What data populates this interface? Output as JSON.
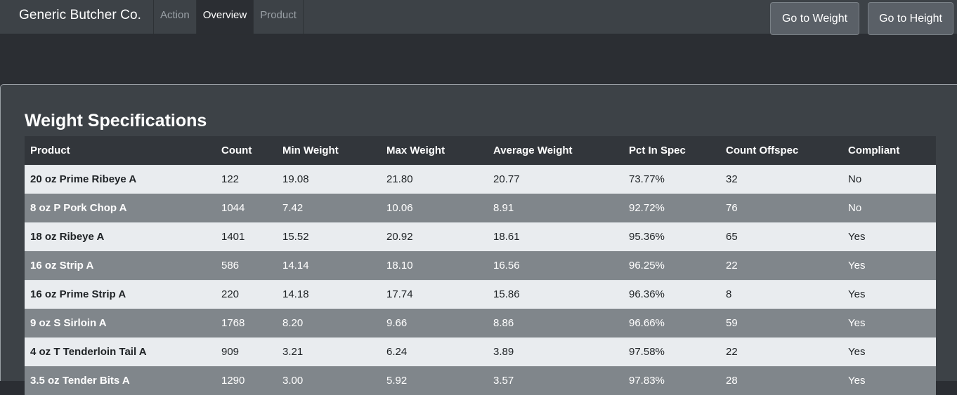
{
  "navbar": {
    "brand": "Generic Butcher Co.",
    "tabs": [
      {
        "label": "Action",
        "active": false
      },
      {
        "label": "Overview",
        "active": true
      },
      {
        "label": "Product",
        "active": false
      }
    ],
    "buttons": {
      "go_to_weight": "Go to Weight",
      "go_to_height": "Go to Height"
    }
  },
  "main": {
    "title": "Weight Specifications",
    "table": {
      "columns": [
        "Product",
        "Count",
        "Min Weight",
        "Max Weight",
        "Average Weight",
        "Pct In Spec",
        "Count Offspec",
        "Compliant"
      ],
      "rows": [
        [
          "20 oz Prime Ribeye A",
          "122",
          "19.08",
          "21.80",
          "20.77",
          "73.77%",
          "32",
          "No"
        ],
        [
          "8 oz P Pork Chop A",
          "1044",
          "7.42",
          "10.06",
          "8.91",
          "92.72%",
          "76",
          "No"
        ],
        [
          "18 oz Ribeye A",
          "1401",
          "15.52",
          "20.92",
          "18.61",
          "95.36%",
          "65",
          "Yes"
        ],
        [
          "16 oz Strip A",
          "586",
          "14.14",
          "18.10",
          "16.56",
          "96.25%",
          "22",
          "Yes"
        ],
        [
          "16 oz Prime Strip A",
          "220",
          "14.18",
          "17.74",
          "15.86",
          "96.36%",
          "8",
          "Yes"
        ],
        [
          "9 oz S Sirloin A",
          "1768",
          "8.20",
          "9.66",
          "8.86",
          "96.66%",
          "59",
          "Yes"
        ],
        [
          "4 oz T Tenderloin Tail A",
          "909",
          "3.21",
          "6.24",
          "3.89",
          "97.58%",
          "22",
          "Yes"
        ],
        [
          "3.5 oz Tender Bits A",
          "1290",
          "3.00",
          "5.92",
          "3.57",
          "97.83%",
          "28",
          "Yes"
        ]
      ]
    }
  },
  "colors": {
    "navbar_bg": "#3d4247",
    "page_bg": "#2b2e33",
    "row_light": "#e9ecef",
    "row_dark": "#80868b",
    "header_bg": "#32363b"
  }
}
